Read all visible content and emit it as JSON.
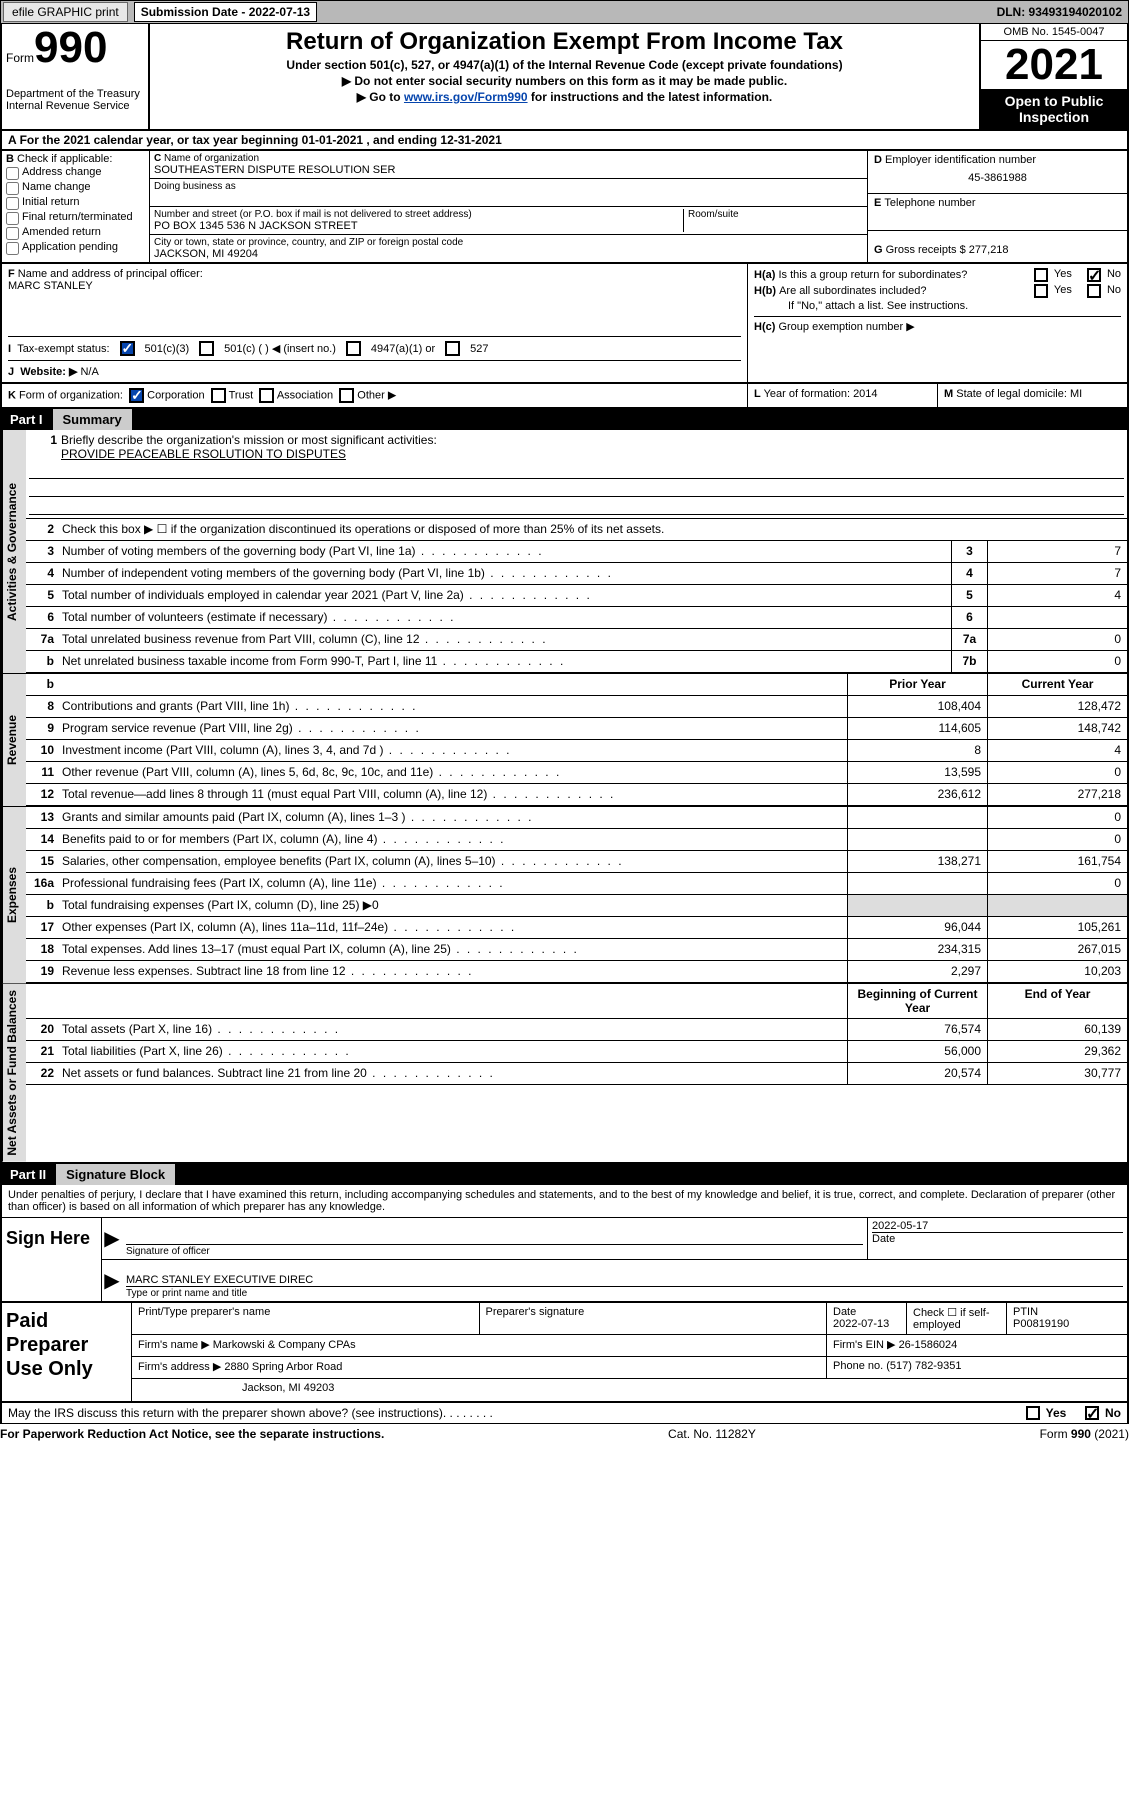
{
  "topbar": {
    "efile": "efile GRAPHIC print",
    "submission_label": "Submission Date - 2022-07-13",
    "dln": "DLN: 93493194020102"
  },
  "header": {
    "form_label": "Form",
    "form_num": "990",
    "dept": "Department of the Treasury",
    "irs": "Internal Revenue Service",
    "title": "Return of Organization Exempt From Income Tax",
    "subtitle": "Under section 501(c), 527, or 4947(a)(1) of the Internal Revenue Code (except private foundations)",
    "note1": "Do not enter social security numbers on this form as it may be made public.",
    "note2_pre": "Go to ",
    "note2_link": "www.irs.gov/Form990",
    "note2_post": " for instructions and the latest information.",
    "omb": "OMB No. 1545-0047",
    "year": "2021",
    "open": "Open to Public Inspection"
  },
  "period": "For the 2021 calendar year, or tax year beginning 01-01-2021   , and ending 12-31-2021",
  "sectionB": {
    "label": "Check if applicable:",
    "opts": [
      "Address change",
      "Name change",
      "Initial return",
      "Final return/terminated",
      "Amended return",
      "Application pending"
    ]
  },
  "sectionC": {
    "name_label": "Name of organization",
    "name": "SOUTHEASTERN DISPUTE RESOLUTION SER",
    "dba_label": "Doing business as",
    "addr_label": "Number and street (or P.O. box if mail is not delivered to street address)",
    "room_label": "Room/suite",
    "addr": "PO BOX 1345 536 N JACKSON STREET",
    "city_label": "City or town, state or province, country, and ZIP or foreign postal code",
    "city": "JACKSON, MI  49204"
  },
  "sectionD": {
    "label": "Employer identification number",
    "ein": "45-3861988"
  },
  "sectionE": {
    "label": "Telephone number"
  },
  "sectionG": {
    "label": "Gross receipts $",
    "val": "277,218"
  },
  "sectionF": {
    "label": "Name and address of principal officer:",
    "name": "MARC STANLEY"
  },
  "sectionH": {
    "ha": "Is this a group return for subordinates?",
    "hb": "Are all subordinates included?",
    "hb_note": "If \"No,\" attach a list. See instructions.",
    "hc": "Group exemption number ▶",
    "yes": "Yes",
    "no": "No"
  },
  "sectionI": {
    "label": "Tax-exempt status:",
    "o1": "501(c)(3)",
    "o2": "501(c) (  ) ◀ (insert no.)",
    "o3": "4947(a)(1) or",
    "o4": "527"
  },
  "sectionJ": {
    "label": "Website: ▶",
    "val": "N/A"
  },
  "sectionK": {
    "label": "Form of organization:",
    "opts": [
      "Corporation",
      "Trust",
      "Association",
      "Other ▶"
    ]
  },
  "sectionL": {
    "label": "Year of formation:",
    "val": "2014"
  },
  "sectionM": {
    "label": "State of legal domicile:",
    "val": "MI"
  },
  "part1": {
    "num": "Part I",
    "title": "Summary",
    "mission_label": "Briefly describe the organization's mission or most significant activities:",
    "mission": "PROVIDE PEACEABLE RSOLUTION TO DISPUTES",
    "line2": "Check this box ▶ ☐  if the organization discontinued its operations or disposed of more than 25% of its net assets.",
    "lines_gov": [
      {
        "n": "3",
        "d": "Number of voting members of the governing body (Part VI, line 1a)",
        "k": "3",
        "v": "7"
      },
      {
        "n": "4",
        "d": "Number of independent voting members of the governing body (Part VI, line 1b)",
        "k": "4",
        "v": "7"
      },
      {
        "n": "5",
        "d": "Total number of individuals employed in calendar year 2021 (Part V, line 2a)",
        "k": "5",
        "v": "4"
      },
      {
        "n": "6",
        "d": "Total number of volunteers (estimate if necessary)",
        "k": "6",
        "v": ""
      },
      {
        "n": "7a",
        "d": "Total unrelated business revenue from Part VIII, column (C), line 12",
        "k": "7a",
        "v": "0"
      },
      {
        "n": "b",
        "d": "Net unrelated business taxable income from Form 990-T, Part I, line 11",
        "k": "7b",
        "v": "0"
      }
    ],
    "col_prior": "Prior Year",
    "col_current": "Current Year",
    "lines_rev": [
      {
        "n": "8",
        "d": "Contributions and grants (Part VIII, line 1h)",
        "p": "108,404",
        "c": "128,472"
      },
      {
        "n": "9",
        "d": "Program service revenue (Part VIII, line 2g)",
        "p": "114,605",
        "c": "148,742"
      },
      {
        "n": "10",
        "d": "Investment income (Part VIII, column (A), lines 3, 4, and 7d )",
        "p": "8",
        "c": "4"
      },
      {
        "n": "11",
        "d": "Other revenue (Part VIII, column (A), lines 5, 6d, 8c, 9c, 10c, and 11e)",
        "p": "13,595",
        "c": "0"
      },
      {
        "n": "12",
        "d": "Total revenue—add lines 8 through 11 (must equal Part VIII, column (A), line 12)",
        "p": "236,612",
        "c": "277,218"
      }
    ],
    "lines_exp": [
      {
        "n": "13",
        "d": "Grants and similar amounts paid (Part IX, column (A), lines 1–3 )",
        "p": "",
        "c": "0"
      },
      {
        "n": "14",
        "d": "Benefits paid to or for members (Part IX, column (A), line 4)",
        "p": "",
        "c": "0"
      },
      {
        "n": "15",
        "d": "Salaries, other compensation, employee benefits (Part IX, column (A), lines 5–10)",
        "p": "138,271",
        "c": "161,754"
      },
      {
        "n": "16a",
        "d": "Professional fundraising fees (Part IX, column (A), line 11e)",
        "p": "",
        "c": "0"
      },
      {
        "n": "b",
        "d": "Total fundraising expenses (Part IX, column (D), line 25) ▶0",
        "p": "shaded",
        "c": "shaded"
      },
      {
        "n": "17",
        "d": "Other expenses (Part IX, column (A), lines 11a–11d, 11f–24e)",
        "p": "96,044",
        "c": "105,261"
      },
      {
        "n": "18",
        "d": "Total expenses. Add lines 13–17 (must equal Part IX, column (A), line 25)",
        "p": "234,315",
        "c": "267,015"
      },
      {
        "n": "19",
        "d": "Revenue less expenses. Subtract line 18 from line 12",
        "p": "2,297",
        "c": "10,203"
      }
    ],
    "col_begin": "Beginning of Current Year",
    "col_end": "End of Year",
    "lines_net": [
      {
        "n": "20",
        "d": "Total assets (Part X, line 16)",
        "p": "76,574",
        "c": "60,139"
      },
      {
        "n": "21",
        "d": "Total liabilities (Part X, line 26)",
        "p": "56,000",
        "c": "29,362"
      },
      {
        "n": "22",
        "d": "Net assets or fund balances. Subtract line 21 from line 20",
        "p": "20,574",
        "c": "30,777"
      }
    ],
    "tab_gov": "Activities & Governance",
    "tab_rev": "Revenue",
    "tab_exp": "Expenses",
    "tab_net": "Net Assets or Fund Balances"
  },
  "part2": {
    "num": "Part II",
    "title": "Signature Block",
    "decl": "Under penalties of perjury, I declare that I have examined this return, including accompanying schedules and statements, and to the best of my knowledge and belief, it is true, correct, and complete. Declaration of preparer (other than officer) is based on all information of which preparer has any knowledge.",
    "sign_here": "Sign Here",
    "sig_label": "Signature of officer",
    "date_val": "2022-05-17",
    "date_label": "Date",
    "name_val": "MARC STANLEY  EXECUTIVE DIREC",
    "name_label": "Type or print name and title"
  },
  "preparer": {
    "title": "Paid Preparer Use Only",
    "h1": "Print/Type preparer's name",
    "h2": "Preparer's signature",
    "h3": "Date",
    "h3v": "2022-07-13",
    "h4": "Check ☐ if self-employed",
    "h5": "PTIN",
    "h5v": "P00819190",
    "firm_label": "Firm's name    ▶",
    "firm": "Markowski & Company CPAs",
    "firm_ein_label": "Firm's EIN ▶",
    "firm_ein": "26-1586024",
    "addr_label": "Firm's address ▶",
    "addr1": "2880 Spring Arbor Road",
    "addr2": "Jackson, MI  49203",
    "phone_label": "Phone no.",
    "phone": "(517) 782-9351"
  },
  "footer": {
    "discuss": "May the IRS discuss this return with the preparer shown above? (see instructions)",
    "paperwork": "For Paperwork Reduction Act Notice, see the separate instructions.",
    "cat": "Cat. No. 11282Y",
    "form": "Form 990 (2021)"
  }
}
